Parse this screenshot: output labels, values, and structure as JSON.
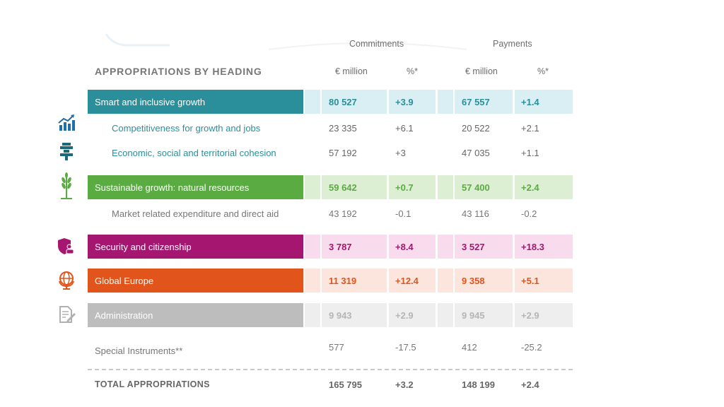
{
  "table": {
    "title": "APPROPRIATIONS BY HEADING",
    "group_headers": {
      "commitments": "Commitments",
      "payments": "Payments"
    },
    "col_headers": {
      "c1": "€ million",
      "c2": "%*",
      "c3": "€ million",
      "c4": "%*"
    },
    "rows": [
      {
        "label": "Smart and inclusive growth",
        "c1": "80 527",
        "c2": "+3.9",
        "c3": "67 557",
        "c4": "+1.4"
      },
      {
        "label": "Competitiveness for growth and jobs",
        "c1": "23 335",
        "c2": "+6.1",
        "c3": "20 522",
        "c4": "+2.1"
      },
      {
        "label": "Economic, social and territorial cohesion",
        "c1": "57 192",
        "c2": "+3",
        "c3": "47 035",
        "c4": "+1.1"
      },
      {
        "label": "Sustainable growth: natural resources",
        "c1": "59 642",
        "c2": "+0.7",
        "c3": "57 400",
        "c4": "+2.4"
      },
      {
        "label": "Market related expenditure and direct aid",
        "c1": "43 192",
        "c2": "-0.1",
        "c3": "43 116",
        "c4": "-0.2"
      },
      {
        "label": "Security and citizenship",
        "c1": "3 787",
        "c2": "+8.4",
        "c3": "3 527",
        "c4": "+18.3"
      },
      {
        "label": "Global Europe",
        "c1": "11 319",
        "c2": "+12.4",
        "c3": "9 358",
        "c4": "+5.1"
      },
      {
        "label": "Administration",
        "c1": "9 943",
        "c2": "+2.9",
        "c3": "9 945",
        "c4": "+2.9"
      },
      {
        "label": "Special Instruments**",
        "c1": "577",
        "c2": "-17.5",
        "c3": "412",
        "c4": "-25.2"
      }
    ],
    "total": {
      "label": "TOTAL APPROPRIATIONS",
      "c1": "165 795",
      "c2": "+3.2",
      "c3": "148 199",
      "c4": "+2.4"
    }
  },
  "colors": {
    "teal": "#2a8f9a",
    "teal_light": "#d9eff3",
    "green": "#5aab42",
    "green_light": "#dcefd2",
    "magenta": "#a4166f",
    "magenta_light": "#f8dcee",
    "orange": "#e1541b",
    "orange_light": "#fbe5dc",
    "grey": "#bdbdbd",
    "grey_light": "#eeeeee"
  },
  "icons": [
    "chart-growth-icon",
    "cohesion-icon",
    "wheat-icon",
    "security-shield-icon",
    "globe-icon",
    "document-pen-icon"
  ]
}
